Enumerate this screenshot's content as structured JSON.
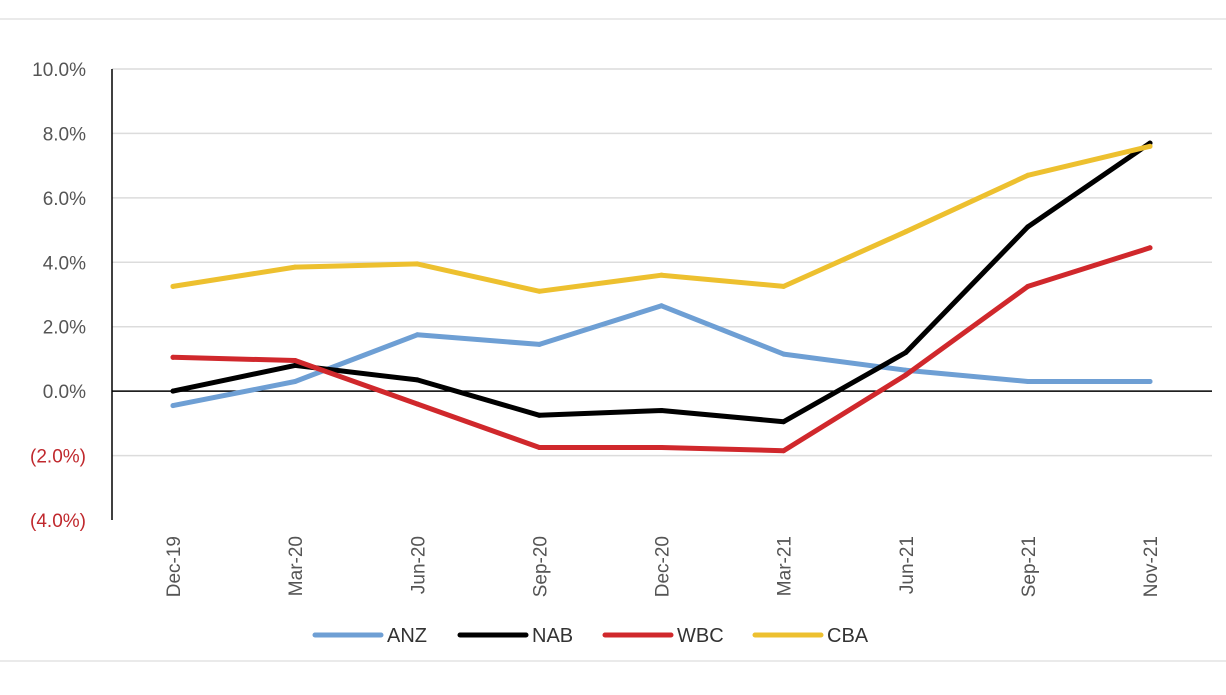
{
  "chart_data": {
    "type": "line",
    "title": "",
    "xlabel": "",
    "ylabel": "",
    "categories": [
      "Dec-19",
      "Mar-20",
      "Jun-20",
      "Sep-20",
      "Dec-20",
      "Mar-21",
      "Jun-21",
      "Sep-21",
      "Nov-21"
    ],
    "ylim": [
      -4,
      10
    ],
    "yticks": [
      -4,
      -2,
      0,
      2,
      4,
      6,
      8,
      10
    ],
    "ytick_labels": [
      "(4.0%)",
      "(2.0%)",
      "0.0%",
      "2.0%",
      "4.0%",
      "6.0%",
      "8.0%",
      "10.0%"
    ],
    "negative_label_color": "#c0282d",
    "positive_label_color": "#555555",
    "grid": true,
    "legend_position": "bottom",
    "series": [
      {
        "name": "ANZ",
        "color": "#6e9fd4",
        "values": [
          -0.45,
          0.3,
          1.75,
          1.45,
          2.65,
          1.15,
          0.65,
          0.3,
          0.3
        ]
      },
      {
        "name": "NAB",
        "color": "#000000",
        "values": [
          0.0,
          0.8,
          0.35,
          -0.75,
          -0.6,
          -0.95,
          1.2,
          5.1,
          7.7
        ]
      },
      {
        "name": "WBC",
        "color": "#d0282c",
        "values": [
          1.05,
          0.95,
          -0.4,
          -1.75,
          -1.75,
          -1.85,
          0.5,
          3.25,
          4.45
        ]
      },
      {
        "name": "CBA",
        "color": "#edc02f",
        "values": [
          3.25,
          3.85,
          3.95,
          3.1,
          3.6,
          3.25,
          4.95,
          6.7,
          7.6
        ]
      }
    ]
  }
}
